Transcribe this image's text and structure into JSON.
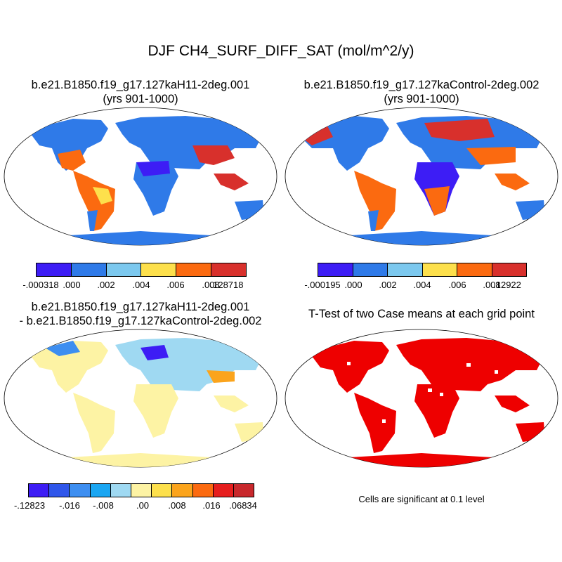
{
  "title": "DJF CH4_SURF_DIFF_SAT (mol/m^2/y)",
  "panels": [
    {
      "title_line1": "b.e21.B1850.f19_g17.127kaH11-2deg.001",
      "title_line2": "(yrs 901-1000)",
      "colorbar": {
        "colors": [
          "#3d1df5",
          "#2f7ae8",
          "#7cc8ee",
          "#fde04c",
          "#fb6a10",
          "#d8302c"
        ],
        "labels": [
          "-.000318",
          ".000",
          ".002",
          ".004",
          ".006",
          ".008",
          ".128718"
        ]
      }
    },
    {
      "title_line1": "b.e21.B1850.f19_g17.127kaControl-2deg.002",
      "title_line2": "(yrs 901-1000)",
      "colorbar": {
        "colors": [
          "#3d1df5",
          "#2f7ae8",
          "#7cc8ee",
          "#fde04c",
          "#fb6a10",
          "#d8302c"
        ],
        "labels": [
          "-.000195",
          ".000",
          ".002",
          ".004",
          ".006",
          ".008",
          ".12922"
        ]
      }
    },
    {
      "title_line1": "b.e21.B1850.f19_g17.127kaH11-2deg.001",
      "title_line2": "- b.e21.B1850.f19_g17.127kaControl-2deg.002",
      "colorbar": {
        "colors": [
          "#3d1df5",
          "#2f56ea",
          "#3d8ef0",
          "#1aa6f2",
          "#9fd9f2",
          "#fdf3a4",
          "#fde04c",
          "#fba41c",
          "#fb6a10",
          "#e61e1e",
          "#c8282c"
        ],
        "labels": [
          "-.12823",
          "-.016",
          "-.008",
          ".00",
          ".008",
          ".016",
          ".06834"
        ]
      }
    },
    {
      "title_line1": "T-Test of two Case means at each grid point",
      "note": "Cells are significant at 0.1 level"
    }
  ]
}
